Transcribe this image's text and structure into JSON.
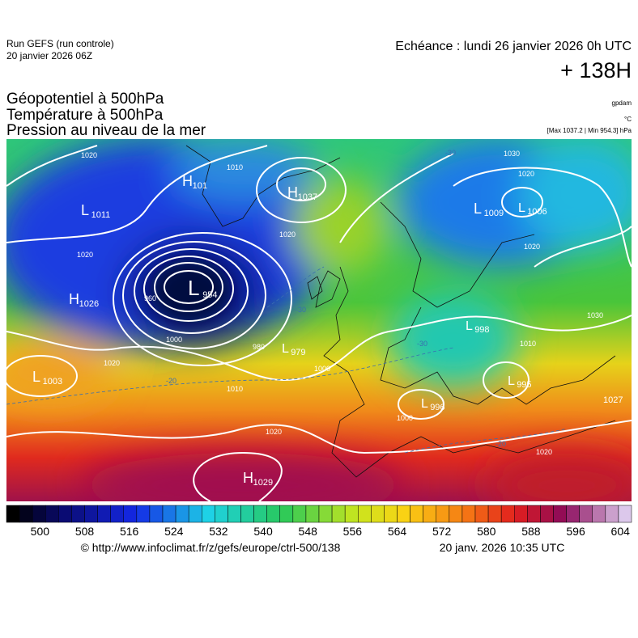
{
  "header": {
    "model": "Run GEFS (run controle)",
    "run": "20 janvier 2026 06Z",
    "validity": "Echéance : lundi 26 janvier 2026 0h UTC",
    "lead": "+ 138H",
    "fields": [
      "Géopotentiel à 500hPa",
      "Température à 500hPa",
      "Pression au niveau de la mer"
    ],
    "units": [
      "gpdam",
      "°C",
      "[Max 1037.2 | Min 954.3] hPa"
    ]
  },
  "map": {
    "pressure_centers": [
      {
        "letter": "L",
        "value": "1011"
      },
      {
        "letter": "H",
        "value": "101"
      },
      {
        "letter": "H",
        "value": "1037"
      },
      {
        "letter": "L",
        "value": "954"
      },
      {
        "letter": "H",
        "value": "1026"
      },
      {
        "letter": "L",
        "value": "979"
      },
      {
        "letter": "L",
        "value": "1003"
      },
      {
        "letter": "L",
        "value": "1009"
      },
      {
        "letter": "L",
        "value": "1006"
      },
      {
        "letter": "L",
        "value": "998"
      },
      {
        "letter": "L",
        "value": "995"
      },
      {
        "letter": "L",
        "value": "996"
      },
      {
        "letter": "H",
        "value": "1027"
      },
      {
        "letter": "H",
        "value": "1029"
      }
    ],
    "isobar_labels": [
      "1020",
      "1020",
      "1010",
      "1020",
      "1000",
      "980",
      "1000",
      "1020",
      "1020",
      "1030",
      "1020",
      "1020",
      "1030",
      "1010",
      "1020",
      "1010",
      "960",
      "1000"
    ],
    "temperature_labels": [
      "-30",
      "-30",
      "-20",
      "-20",
      "-30"
    ]
  },
  "colorbar": {
    "ticks": [
      500,
      508,
      516,
      524,
      532,
      540,
      548,
      556,
      564,
      572,
      580,
      588,
      596,
      604
    ]
  },
  "footer": {
    "source": "© http://www.infoclimat.fr/z/gefs/europe/ctrl-500/138",
    "timestamp": "20 janv. 2026 10:35 UTC"
  }
}
